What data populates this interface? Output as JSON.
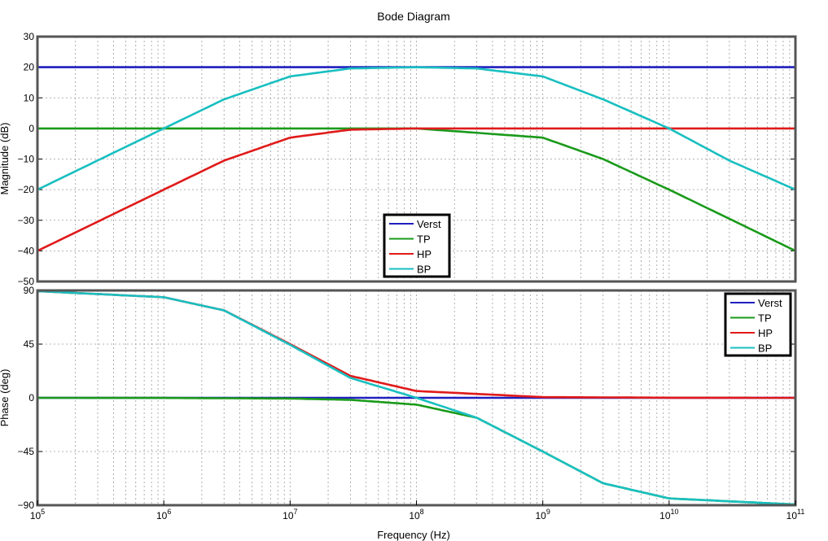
{
  "chart_data": [
    {
      "type": "line",
      "title": "Bode Diagram",
      "ylabel": "Magnitude (dB)",
      "xlabel": "",
      "xscale": "log",
      "xlim": [
        100000.0,
        100000000000.0
      ],
      "ylim": [
        -50,
        30
      ],
      "yticks": [
        -50,
        -40,
        -30,
        -20,
        -10,
        0,
        10,
        20,
        30
      ],
      "grid": true,
      "legend": "bottom-center",
      "series": [
        {
          "name": "Verst",
          "color": "#1f1fbf",
          "x": [
            100000.0,
            1000000.0,
            10000000.0,
            100000000.0,
            1000000000.0,
            10000000000.0,
            100000000000.0
          ],
          "values": [
            20,
            20,
            20,
            20,
            20,
            20,
            20
          ]
        },
        {
          "name": "TP",
          "color": "#1a9a1a",
          "x": [
            100000.0,
            1000000.0,
            10000000.0,
            100000000.0,
            1000000000.0,
            3000000000.0,
            10000000000.0,
            30000000000.0,
            100000000000.0
          ],
          "values": [
            0,
            0,
            0,
            0,
            -3,
            -10,
            -20,
            -29.5,
            -40
          ]
        },
        {
          "name": "HP",
          "color": "#e01a1a",
          "x": [
            100000.0,
            1000000.0,
            3000000.0,
            10000000.0,
            30000000.0,
            100000000.0,
            1000000000.0,
            10000000000.0,
            100000000000.0
          ],
          "values": [
            -40,
            -20,
            -10.5,
            -3,
            -0.4,
            0,
            0,
            0,
            0
          ]
        },
        {
          "name": "BP",
          "color": "#19bfc0",
          "x": [
            100000.0,
            1000000.0,
            3000000.0,
            10000000.0,
            30000000.0,
            100000000.0,
            300000000.0,
            1000000000.0,
            3000000000.0,
            10000000000.0,
            30000000000.0,
            100000000000.0
          ],
          "values": [
            -20,
            0,
            9.5,
            17,
            19.6,
            20,
            19.6,
            17,
            9.5,
            0,
            -10.5,
            -20
          ]
        }
      ]
    },
    {
      "type": "line",
      "title": "",
      "ylabel": "Phase (deg)",
      "xlabel": "Frequency  (Hz)",
      "xscale": "log",
      "xlim": [
        100000.0,
        100000000000.0
      ],
      "ylim": [
        -90,
        90
      ],
      "yticks": [
        -90,
        -45,
        0,
        45,
        90
      ],
      "xticks": [
        {
          "base": "10",
          "exp": "5"
        },
        {
          "base": "10",
          "exp": "6"
        },
        {
          "base": "10",
          "exp": "7"
        },
        {
          "base": "10",
          "exp": "8"
        },
        {
          "base": "10",
          "exp": "9"
        },
        {
          "base": "10",
          "exp": "10"
        },
        {
          "base": "10",
          "exp": "11"
        }
      ],
      "grid": true,
      "legend": "top-right",
      "series": [
        {
          "name": "Verst",
          "color": "#1f1fbf",
          "x": [
            100000.0,
            100000000000.0
          ],
          "values": [
            0,
            0
          ]
        },
        {
          "name": "TP",
          "color": "#1a9a1a",
          "x": [
            100000.0,
            1000000.0,
            10000000.0,
            30000000.0,
            100000000.0,
            300000000.0,
            1000000000.0,
            3000000000.0,
            10000000000.0,
            100000000000.0
          ],
          "values": [
            0,
            -0.1,
            -0.6,
            -1.7,
            -5.7,
            -16.7,
            -45,
            -71.6,
            -84.3,
            -89.4
          ]
        },
        {
          "name": "HP",
          "color": "#e01a1a",
          "x": [
            100000.0,
            1000000.0,
            3000000.0,
            10000000.0,
            30000000.0,
            100000000.0,
            1000000000.0,
            10000000000.0,
            100000000000.0
          ],
          "values": [
            89.4,
            84.3,
            73.3,
            45,
            18.4,
            5.7,
            0.6,
            0.1,
            0
          ]
        },
        {
          "name": "BP",
          "color": "#19bfc0",
          "x": [
            100000.0,
            1000000.0,
            3000000.0,
            10000000.0,
            30000000.0,
            100000000.0,
            300000000.0,
            1000000000.0,
            3000000000.0,
            10000000000.0,
            100000000000.0
          ],
          "values": [
            89.4,
            84.3,
            73.3,
            44.4,
            16.7,
            0,
            -16.7,
            -45,
            -71.6,
            -84.3,
            -89.4
          ]
        }
      ]
    }
  ]
}
